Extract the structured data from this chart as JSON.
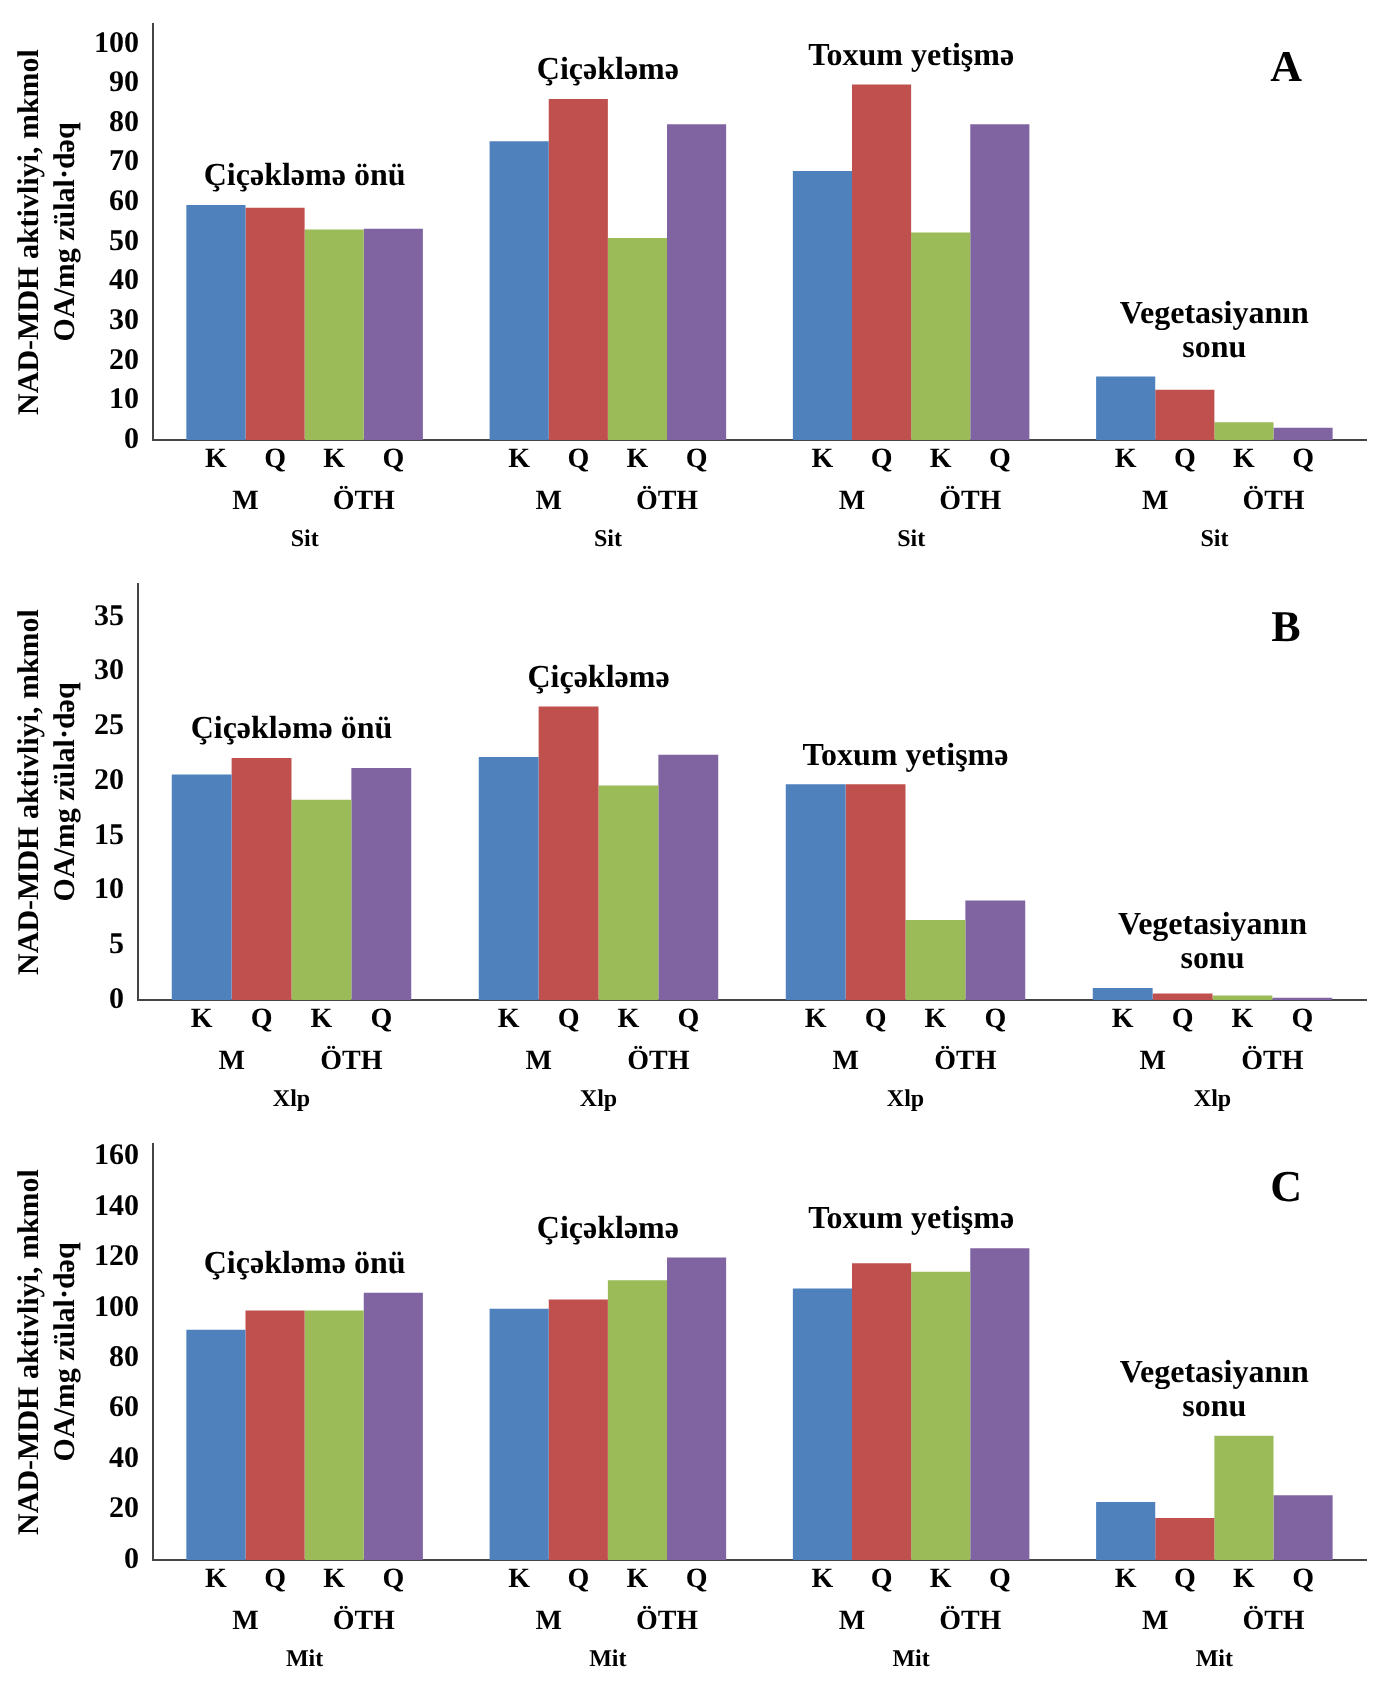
{
  "chart_data": [
    {
      "type": "bar",
      "title": "A",
      "ylabel": "NAD-MDH aktivliyi, mkmol OA/mg zülal·dəq",
      "categories": [
        "Çiçəkləmə önü",
        "Çiçəkləmə",
        "Toxum yetişmə",
        "Vegetasiyanın sonu"
      ],
      "series": [
        {
          "name": "K",
          "color": "#4f81bd",
          "values": [
            59.3,
            75.4,
            67.9,
            16
          ]
        },
        {
          "name": "Q",
          "color": "#c0504d",
          "values": [
            58.6,
            86.1,
            89.7,
            12.7
          ]
        },
        {
          "name": "K",
          "color": "#9bbb59",
          "values": [
            53.1,
            51,
            52.4,
            4.5
          ]
        },
        {
          "name": "Q",
          "color": "#8064a2",
          "values": [
            53.3,
            79.7,
            79.7,
            3.1
          ]
        }
      ],
      "ylim": [
        0,
        105
      ],
      "yticks": [
        0,
        10,
        20,
        30,
        40,
        50,
        60,
        70,
        80,
        90,
        100
      ],
      "annotations": [
        "M",
        "ÖTH",
        "Sit"
      ]
    },
    {
      "type": "bar",
      "title": "B",
      "ylabel": "NAD-MDH aktivliyi, mkmol OA/mg zülal·dəq",
      "categories": [
        "Çiçəkləmə önü",
        "Çiçəkləmə",
        "Toxum yetişmə",
        "Vegetasiyanın sonu"
      ],
      "series": [
        {
          "name": "K",
          "color": "#4f81bd",
          "values": [
            20.6,
            22.2,
            19.7,
            1.1
          ]
        },
        {
          "name": "Q",
          "color": "#c0504d",
          "values": [
            22.1,
            26.8,
            19.7,
            0.6
          ]
        },
        {
          "name": "K",
          "color": "#9bbb59",
          "values": [
            18.3,
            19.6,
            7.3,
            0.4
          ]
        },
        {
          "name": "Q",
          "color": "#8064a2",
          "values": [
            21.2,
            22.4,
            9.1,
            0.2
          ]
        }
      ],
      "ylim": [
        0,
        38
      ],
      "yticks": [
        0,
        5,
        10,
        15,
        20,
        25,
        30,
        35
      ],
      "annotations": [
        "M",
        "ÖTH",
        "Xlp"
      ]
    },
    {
      "type": "bar",
      "title": "C",
      "ylabel": "NAD-MDH aktivliyi, mkmol OA/mg zülal·dəq",
      "categories": [
        "Çiçəkləmə önü",
        "Çiçəkləmə",
        "Toxum yetişmə",
        "Vegetasiyanın sonu"
      ],
      "series": [
        {
          "name": "K",
          "color": "#4f81bd",
          "values": [
            91.3,
            99.7,
            107.7,
            23
          ]
        },
        {
          "name": "Q",
          "color": "#c0504d",
          "values": [
            99,
            103.3,
            117.7,
            16.7
          ]
        },
        {
          "name": "K",
          "color": "#9bbb59",
          "values": [
            99,
            111,
            114.3,
            49.3
          ]
        },
        {
          "name": "Q",
          "color": "#8064a2",
          "values": [
            106,
            120,
            123.7,
            25.7
          ]
        }
      ],
      "ylim": [
        0,
        165
      ],
      "yticks": [
        0,
        20,
        40,
        60,
        80,
        100,
        120,
        140,
        160
      ],
      "annotations": [
        "M",
        "ÖTH",
        "Mit"
      ]
    }
  ]
}
